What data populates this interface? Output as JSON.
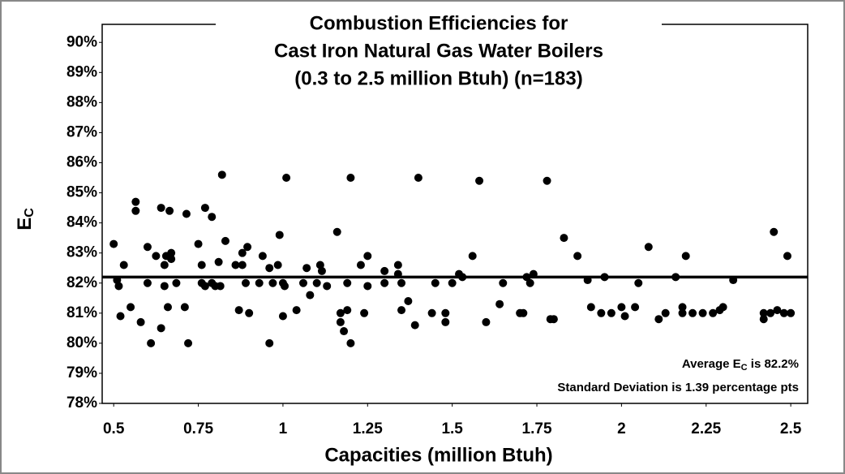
{
  "chart_data": {
    "type": "scatter",
    "title": [
      "Combustion Efficiencies for",
      "Cast Iron Natural Gas Water Boilers",
      "(0.3 to 2.5 million Btuh) (n=183)"
    ],
    "x_label": "Capacities (million Btuh)",
    "y_label": [
      "E",
      "C"
    ],
    "annotations": [
      [
        "Average E",
        "C",
        " is 82.2%"
      ],
      [
        "Standard Deviation is 1.39 percentage pts"
      ]
    ],
    "average_line": 82.2,
    "color": "#000000",
    "xlim": [
      0.466,
      2.55
    ],
    "ylim": [
      78,
      90.6
    ],
    "xticks": [
      0.5,
      0.75,
      1,
      1.25,
      1.5,
      1.75,
      2,
      2.25,
      2.5
    ],
    "yticks": [
      {
        "value": 78,
        "label": "78%"
      },
      {
        "value": 79,
        "label": "79%"
      },
      {
        "value": 80,
        "label": "80%"
      },
      {
        "value": 81,
        "label": "81%"
      },
      {
        "value": 82,
        "label": "82%"
      },
      {
        "value": 83,
        "label": "83%"
      },
      {
        "value": 84,
        "label": "84%"
      },
      {
        "value": 85,
        "label": "85%"
      },
      {
        "value": 86,
        "label": "86%"
      },
      {
        "value": 87,
        "label": "87%"
      },
      {
        "value": 88,
        "label": "88%"
      },
      {
        "value": 89,
        "label": "89%"
      },
      {
        "value": 90,
        "label": "90%"
      }
    ],
    "x": [
      0.5,
      0.51,
      0.515,
      0.52,
      0.53,
      0.55,
      0.565,
      0.565,
      0.58,
      0.6,
      0.6,
      0.61,
      0.625,
      0.64,
      0.64,
      0.65,
      0.65,
      0.655,
      0.66,
      0.665,
      0.67,
      0.67,
      0.685,
      0.71,
      0.715,
      0.72,
      0.75,
      0.76,
      0.76,
      0.77,
      0.77,
      0.79,
      0.79,
      0.8,
      0.81,
      0.815,
      0.82,
      0.83,
      0.86,
      0.87,
      0.88,
      0.88,
      0.89,
      0.895,
      0.9,
      0.93,
      0.94,
      0.96,
      0.96,
      0.97,
      0.985,
      0.99,
      1.0,
      1.0,
      1.005,
      1.01,
      1.04,
      1.06,
      1.07,
      1.08,
      1.1,
      1.11,
      1.115,
      1.13,
      1.16,
      1.17,
      1.17,
      1.18,
      1.19,
      1.19,
      1.2,
      1.2,
      1.23,
      1.24,
      1.25,
      1.25,
      1.3,
      1.3,
      1.34,
      1.34,
      1.35,
      1.35,
      1.37,
      1.39,
      1.4,
      1.44,
      1.45,
      1.48,
      1.48,
      1.5,
      1.52,
      1.53,
      1.56,
      1.58,
      1.6,
      1.64,
      1.65,
      1.7,
      1.71,
      1.72,
      1.73,
      1.74,
      1.78,
      1.79,
      1.8,
      1.83,
      1.87,
      1.9,
      1.91,
      1.94,
      1.95,
      1.97,
      2.0,
      2.01,
      2.04,
      2.05,
      2.08,
      2.11,
      2.13,
      2.16,
      2.18,
      2.18,
      2.19,
      2.21,
      2.24,
      2.27,
      2.29,
      2.3,
      2.33,
      2.42,
      2.42,
      2.44,
      2.45,
      2.46,
      2.48,
      2.49,
      2.5
    ],
    "values": [
      83.3,
      82.1,
      81.9,
      80.9,
      82.6,
      81.2,
      84.7,
      84.4,
      80.7,
      83.2,
      82,
      80,
      82.9,
      80.5,
      84.5,
      82.6,
      81.9,
      82.9,
      81.2,
      84.4,
      83,
      82.8,
      82,
      81.2,
      84.3,
      80,
      83.3,
      82.6,
      82,
      81.9,
      84.5,
      84.2,
      82,
      81.9,
      82.7,
      81.9,
      85.6,
      83.4,
      82.6,
      81.1,
      83,
      82.6,
      82,
      83.2,
      81,
      82,
      82.9,
      82.5,
      80,
      82,
      82.6,
      83.6,
      82,
      80.9,
      81.9,
      85.5,
      81.1,
      82,
      82.5,
      81.6,
      82,
      82.6,
      82.4,
      81.9,
      83.7,
      81,
      80.7,
      80.4,
      82,
      81.1,
      85.5,
      80,
      82.6,
      81,
      82.9,
      81.9,
      82,
      82.4,
      82.6,
      82.3,
      82,
      81.1,
      81.4,
      80.6,
      85.5,
      81,
      82,
      81,
      80.7,
      82,
      82.3,
      82.2,
      82.9,
      85.4,
      80.7,
      81.3,
      82,
      81,
      81,
      82.2,
      82,
      82.3,
      85.4,
      80.8,
      80.8,
      83.5,
      82.9,
      82.1,
      81.2,
      81,
      82.2,
      81,
      81.2,
      80.9,
      81.2,
      82,
      83.2,
      80.8,
      81,
      82.2,
      81,
      81.2,
      82.9,
      81,
      81,
      81,
      81.1,
      81.2,
      82.1,
      81,
      80.8,
      81,
      83.7,
      81.1,
      81,
      82.9,
      81
    ]
  }
}
